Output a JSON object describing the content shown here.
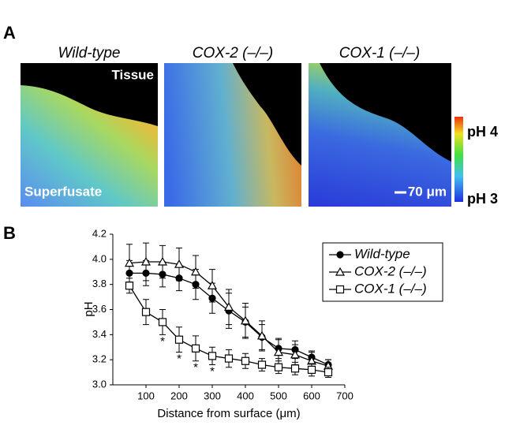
{
  "panel_a": {
    "label": "A",
    "images": [
      "Wild-type",
      "COX-2 (–/–)",
      "COX-1 (–/–)"
    ],
    "tissue": "Tissue",
    "superfusate": "Superfusate",
    "scale_bar": "70 μm",
    "colorbar_top": "pH 4",
    "colorbar_bottom": "pH 3"
  },
  "chart_data": {
    "type": "line",
    "panel_label": "B",
    "x_label": "Distance from surface (μm)",
    "y_label": "pH",
    "x": [
      50,
      100,
      150,
      200,
      250,
      300,
      350,
      400,
      450,
      500,
      550,
      600,
      650
    ],
    "series": [
      {
        "name": "Wild-type",
        "color": "#000000",
        "marker": "circle",
        "marker_fill": "#000000",
        "values": [
          3.89,
          3.89,
          3.88,
          3.85,
          3.8,
          3.69,
          3.59,
          3.5,
          3.38,
          3.29,
          3.28,
          3.22,
          3.16
        ],
        "errors": [
          0.1,
          0.1,
          0.1,
          0.1,
          0.12,
          0.12,
          0.14,
          0.12,
          0.1,
          0.08,
          0.07,
          0.05,
          0.04
        ]
      },
      {
        "name": "COX-2 (–/–)",
        "color": "#000000",
        "marker": "triangle",
        "marker_fill": "#ffffff",
        "values": [
          3.97,
          3.98,
          3.98,
          3.96,
          3.9,
          3.79,
          3.62,
          3.51,
          3.39,
          3.26,
          3.24,
          3.19,
          3.15
        ],
        "errors": [
          0.15,
          0.15,
          0.13,
          0.13,
          0.13,
          0.13,
          0.14,
          0.14,
          0.12,
          0.1,
          0.08,
          0.07,
          0.05
        ]
      },
      {
        "name": "COX-1 (–/–)",
        "color": "#000000",
        "marker": "square",
        "marker_fill": "#ffffff",
        "values": [
          3.79,
          3.58,
          3.5,
          3.36,
          3.29,
          3.23,
          3.21,
          3.19,
          3.16,
          3.14,
          3.13,
          3.12,
          3.1
        ],
        "errors": [
          0.06,
          0.1,
          0.1,
          0.1,
          0.1,
          0.07,
          0.07,
          0.06,
          0.05,
          0.05,
          0.05,
          0.05,
          0.04
        ]
      }
    ],
    "annotations": [
      {
        "text": "*",
        "x": 150
      },
      {
        "text": "*",
        "x": 200
      },
      {
        "text": "*",
        "x": 250
      },
      {
        "text": "*",
        "x": 300
      }
    ],
    "xlim": [
      0,
      700
    ],
    "xticks": [
      100,
      200,
      300,
      400,
      500,
      600,
      700
    ],
    "ylim": [
      3.0,
      4.2
    ],
    "yticks": [
      {
        "value": 3,
        "label": "3.0"
      },
      3.2,
      3.4,
      3.6,
      3.8,
      {
        "value": 4,
        "label": "4.0"
      },
      4.2
    ],
    "grid": false,
    "legend": "upper-right"
  }
}
